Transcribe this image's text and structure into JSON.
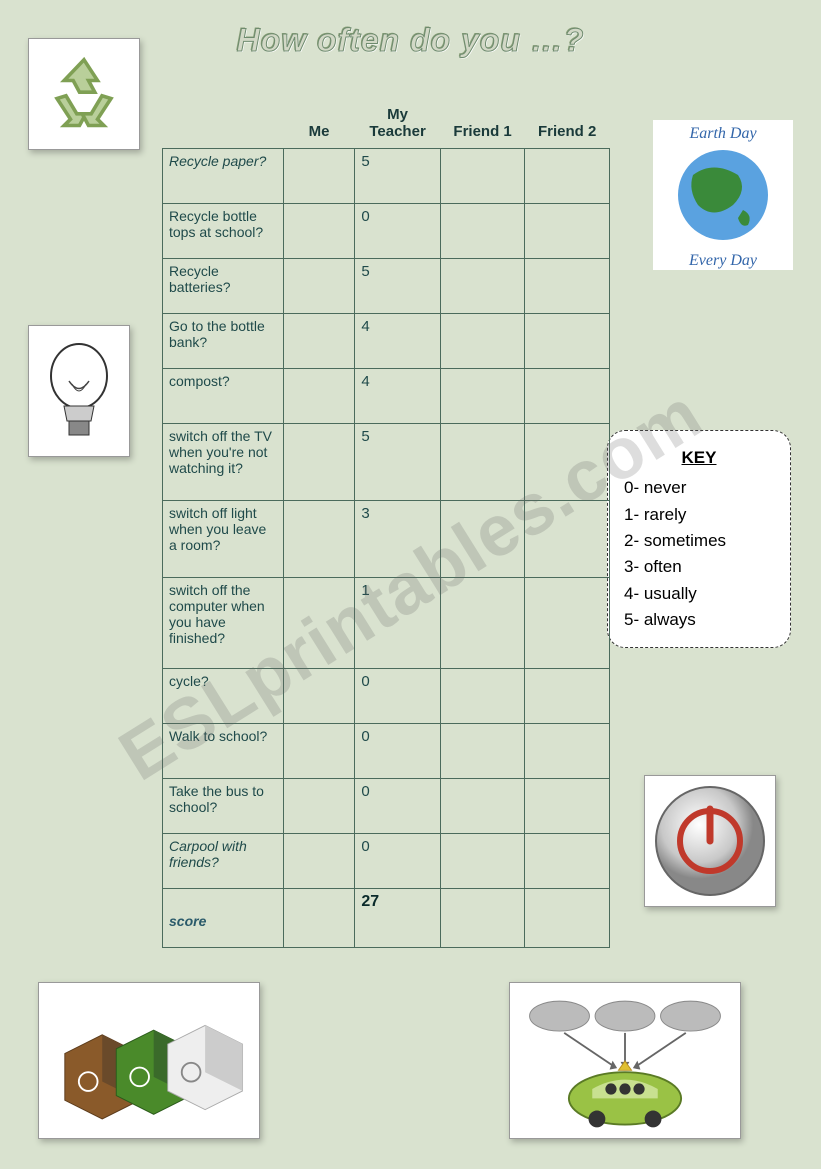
{
  "title": "How often do you …?",
  "headers": [
    "",
    "Me",
    "My Teacher",
    "Friend 1",
    "Friend 2"
  ],
  "rows": [
    {
      "q": "Recycle paper?",
      "teacher": "5",
      "italic": true,
      "hclass": ""
    },
    {
      "q": "Recycle bottle tops at school?",
      "teacher": "0",
      "hclass": ""
    },
    {
      "q": "Recycle batteries?",
      "teacher": "5",
      "hclass": ""
    },
    {
      "q": "Go to the bottle bank?",
      "teacher": "4",
      "hclass": ""
    },
    {
      "q": "compost?",
      "teacher": "4",
      "hclass": ""
    },
    {
      "q": "switch off  the TV when you're not watching it?",
      "teacher": "5",
      "hclass": "tall"
    },
    {
      "q": "switch off light when you leave a room?",
      "teacher": "3",
      "hclass": "tall"
    },
    {
      "q": "switch off  the computer  when you have finished?",
      "teacher": "1",
      "hclass": "taller"
    },
    {
      "q": "cycle?",
      "teacher": "0",
      "hclass": ""
    },
    {
      "q": "Walk to school?",
      "teacher": "0",
      "hclass": ""
    },
    {
      "q": "Take the bus to school?",
      "teacher": "0",
      "hclass": ""
    },
    {
      "q": "Carpool with friends?",
      "teacher": "0",
      "italic": true,
      "hclass": ""
    }
  ],
  "score_label": "score",
  "score_teacher": "27",
  "key": {
    "title": "KEY",
    "items": [
      "0- never",
      "1- rarely",
      "2- sometimes",
      "3- often",
      "4- usually",
      "5- always"
    ]
  },
  "watermark": "ESLprintables.com",
  "colors": {
    "page_bg": "#d9e2cf",
    "table_border": "#4b6b5c",
    "text": "#1f4a4a"
  }
}
